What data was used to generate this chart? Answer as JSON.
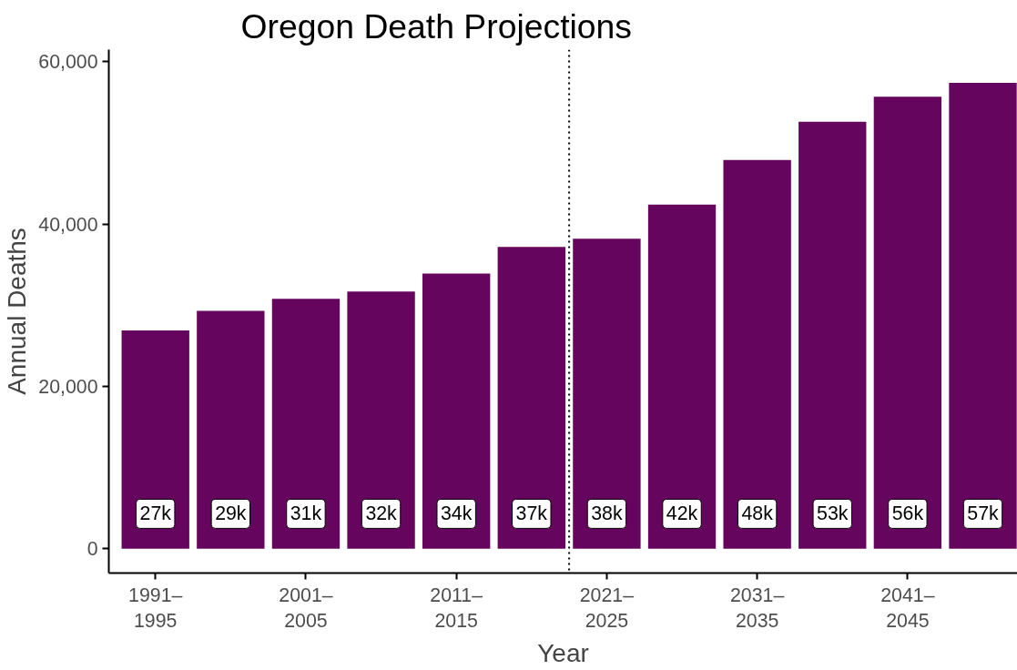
{
  "chart_data": {
    "type": "bar",
    "title": "Oregon Death Projections",
    "xlabel": "Year",
    "ylabel": "Annual Deaths",
    "categories": [
      "1991–\n1995",
      null,
      "2001–\n2005",
      null,
      "2011–\n2015",
      null,
      "2021–\n2025",
      null,
      "2031–\n2035",
      null,
      "2041–\n2045",
      null
    ],
    "values": [
      26900,
      29300,
      30800,
      31700,
      33900,
      37200,
      38200,
      42400,
      47900,
      52600,
      55700,
      57400
    ],
    "value_labels": [
      "27k",
      "29k",
      "31k",
      "32k",
      "34k",
      "37k",
      "38k",
      "42k",
      "48k",
      "53k",
      "56k",
      "57k"
    ],
    "color": "#66055d",
    "ylim": [
      -3000,
      61500
    ],
    "yticks": [
      {
        "value": 0,
        "label": "0"
      },
      {
        "value": 20000,
        "label": "20,000"
      },
      {
        "value": 40000,
        "label": "40,000"
      },
      {
        "value": 60000,
        "label": "60,000"
      }
    ],
    "grid": false
  }
}
